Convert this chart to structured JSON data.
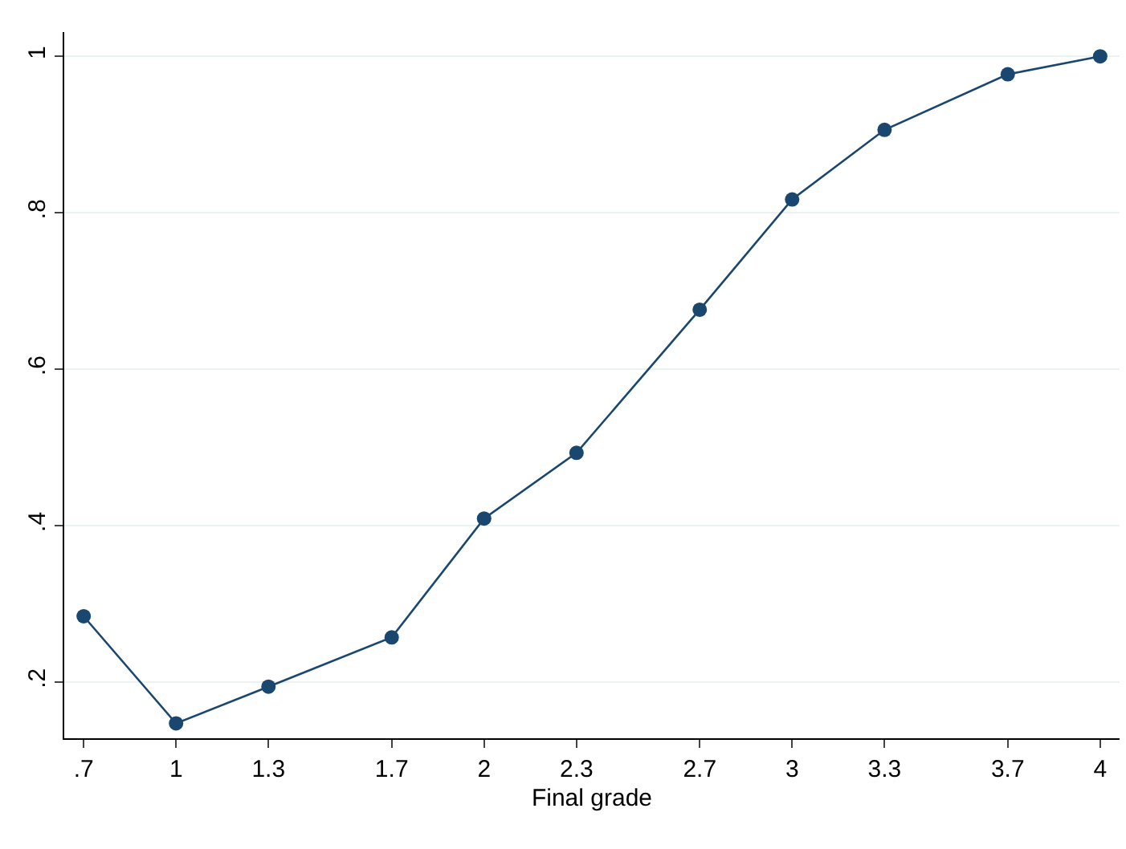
{
  "chart_data": {
    "type": "line",
    "xlabel": "Final grade",
    "x": [
      0.7,
      1,
      1.3,
      1.7,
      2,
      2.3,
      2.7,
      3,
      3.3,
      3.7,
      4
    ],
    "series": [
      {
        "color": "#1a476f",
        "values": [
          0.284,
          0.147,
          0.194,
          0.257,
          0.409,
          0.493,
          0.676,
          0.817,
          0.906,
          0.977,
          1.0
        ]
      }
    ],
    "xlim": [
      0.637,
      4.063
    ],
    "ylim": [
      0.128,
      1.031
    ],
    "xticks": [
      {
        "value": 0.7,
        "label": ".7"
      },
      1,
      1.3,
      1.7,
      2,
      2.3,
      2.7,
      3,
      3.3,
      3.7,
      4
    ],
    "yticks": [
      {
        "value": 0.2,
        "label": ".2"
      },
      {
        "value": 0.4,
        "label": ".4"
      },
      {
        "value": 0.6,
        "label": ".6"
      },
      {
        "value": 0.8,
        "label": ".8"
      },
      1
    ],
    "grid": "y",
    "marker": "circle",
    "line_style": "solid"
  }
}
